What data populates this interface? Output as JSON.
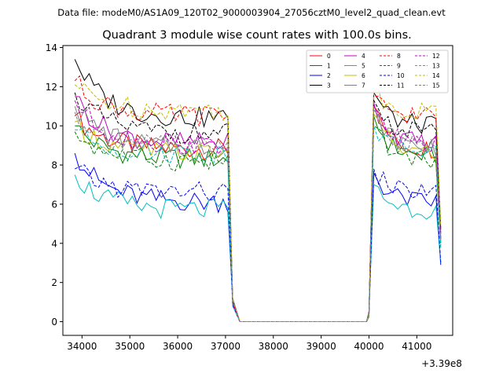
{
  "header": {
    "file_label": "Data file: modeM0/AS1A09_120T02_9000003904_27056cztM0_level2_quad_clean.evt"
  },
  "chart_data": {
    "type": "line",
    "title": "Quadrant 3 module wise count rates with 100.0s bins.",
    "xlabel": "",
    "ylabel": "",
    "x_offset_label": "+3.39e8",
    "xlim": [
      33600,
      41750
    ],
    "ylim": [
      -0.7,
      14.1
    ],
    "x_ticks": [
      34000,
      35000,
      36000,
      37000,
      38000,
      39000,
      40000,
      41000
    ],
    "x_tick_labels": [
      "34000",
      "35000",
      "36000",
      "37000",
      "38000",
      "39000",
      "40000",
      "41000"
    ],
    "y_ticks": [
      0,
      2,
      4,
      6,
      8,
      10,
      12,
      14
    ],
    "y_tick_labels": [
      "0",
      "2",
      "4",
      "6",
      "8",
      "10",
      "12",
      "14"
    ],
    "legend_position": "top-right",
    "segments": [
      {
        "start": 33850,
        "end": 37050,
        "step": 100
      },
      {
        "start": 40000,
        "end": 41450,
        "step": 100
      }
    ],
    "gap": {
      "x": [
        37150,
        37300,
        39950
      ],
      "y": [
        1.0,
        0.0,
        0.0
      ]
    },
    "series": [
      {
        "name": "0",
        "color": "#ff0000",
        "style": "solid",
        "first": 10.5,
        "level1": 8.8,
        "peak2": 11.0,
        "level2": 8.8,
        "last": 4.2
      },
      {
        "name": "1",
        "color": "#008000",
        "style": "solid",
        "first": 10.0,
        "level1": 8.3,
        "peak2": 10.5,
        "level2": 8.4,
        "last": 4.0
      },
      {
        "name": "2",
        "color": "#0000ff",
        "style": "solid",
        "first": 8.6,
        "level1": 6.1,
        "peak2": 7.6,
        "level2": 6.1,
        "last": 2.9
      },
      {
        "name": "3",
        "color": "#000000",
        "style": "solid",
        "first": 13.4,
        "level1": 10.4,
        "peak2": 11.7,
        "level2": 10.0,
        "last": 4.7
      },
      {
        "name": "4",
        "color": "#c000c0",
        "style": "solid",
        "first": 11.5,
        "level1": 9.1,
        "peak2": 11.2,
        "level2": 9.1,
        "last": 4.3
      },
      {
        "name": "5",
        "color": "#00bfbf",
        "style": "solid",
        "first": 7.5,
        "level1": 5.7,
        "peak2": 7.0,
        "level2": 5.7,
        "last": 3.0
      },
      {
        "name": "6",
        "color": "#bfbf00",
        "style": "solid",
        "first": 10.2,
        "level1": 8.6,
        "peak2": 10.6,
        "level2": 8.6,
        "last": 4.1
      },
      {
        "name": "7",
        "color": "#808080",
        "style": "solid",
        "first": 11.0,
        "level1": 8.9,
        "peak2": 10.8,
        "level2": 8.9,
        "last": 4.2
      },
      {
        "name": "8",
        "color": "#ff0000",
        "style": "dashed",
        "first": 12.3,
        "level1": 10.5,
        "peak2": 11.5,
        "level2": 10.5,
        "last": 4.8
      },
      {
        "name": "9",
        "color": "#008000",
        "style": "dashed",
        "first": 9.7,
        "level1": 8.2,
        "peak2": 10.0,
        "level2": 8.3,
        "last": 3.9
      },
      {
        "name": "10",
        "color": "#0000ff",
        "style": "dashed",
        "first": 7.8,
        "level1": 6.6,
        "peak2": 7.8,
        "level2": 6.6,
        "last": 3.0
      },
      {
        "name": "11",
        "color": "#000000",
        "style": "dashed",
        "first": 11.7,
        "level1": 9.6,
        "peak2": 11.3,
        "level2": 9.6,
        "last": 4.5
      },
      {
        "name": "12",
        "color": "#c000c0",
        "style": "dashed",
        "first": 11.3,
        "level1": 9.0,
        "peak2": 11.0,
        "level2": 9.0,
        "last": 4.2
      },
      {
        "name": "13",
        "color": "#00bfbf",
        "style": "dashed",
        "first": 9.8,
        "level1": 8.6,
        "peak2": 10.0,
        "level2": 8.7,
        "last": 3.8
      },
      {
        "name": "14",
        "color": "#bfbf00",
        "style": "dashed",
        "first": 12.1,
        "level1": 10.8,
        "peak2": 11.8,
        "level2": 10.7,
        "last": 4.9
      },
      {
        "name": "15",
        "color": "#808080",
        "style": "dashed",
        "first": 10.7,
        "level1": 8.9,
        "peak2": 10.9,
        "level2": 8.9,
        "last": 4.1
      }
    ]
  }
}
